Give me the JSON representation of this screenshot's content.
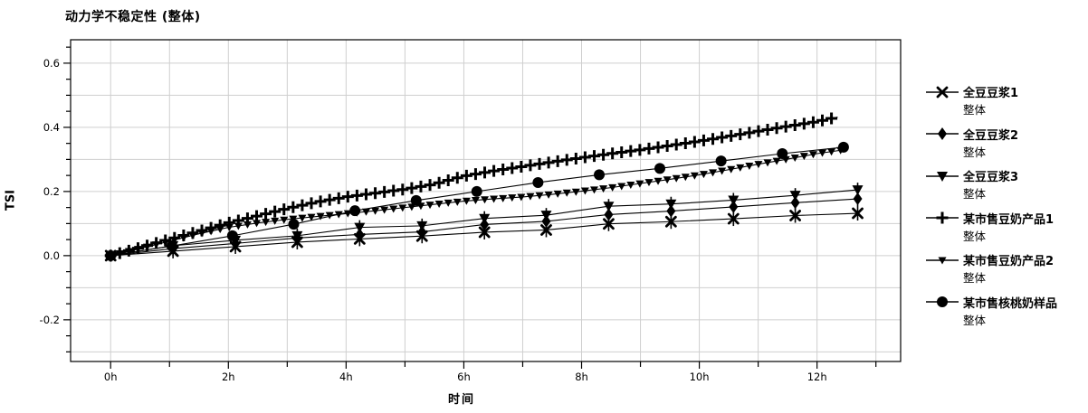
{
  "background_color": "#ffffff",
  "accent_color": "#000000",
  "grid_color": "#cfcfcf",
  "chart_data": {
    "type": "line",
    "title": "动力学不稳定性 (整体)",
    "xlabel": "时间",
    "ylabel": "TSI",
    "x_unit": "h",
    "xlim": [
      -0.68,
      13.42
    ],
    "ylim": [
      -0.33,
      0.673
    ],
    "x_major_ticks": [
      0,
      2,
      4,
      6,
      8,
      10,
      12
    ],
    "x_major_tick_labels": [
      "0h",
      "2h",
      "4h",
      "6h",
      "8h",
      "10h",
      "12h"
    ],
    "x_minor_tick_step": 1,
    "y_major_ticks": [
      0.6,
      0.4,
      0.2,
      0.0,
      -0.2
    ],
    "y_major_tick_labels": [
      "0.6",
      "0.4",
      "0.2",
      "0.0",
      "-0.2"
    ],
    "y_minor_tick_step": 0.05,
    "grid": true,
    "grid_x_step": 1,
    "grid_x_range": [
      0,
      13
    ],
    "grid_y_step": 0.1,
    "grid_y_range": [
      -0.3,
      0.6
    ],
    "legend_position": "right",
    "series": [
      {
        "name": "全豆豆浆1",
        "sub": "整体",
        "marker": "x",
        "marker_size": 10,
        "error_bars": true,
        "t": [
          0,
          1.06,
          2.12,
          3.17,
          4.23,
          5.29,
          6.35,
          7.4,
          8.46,
          9.52,
          10.58,
          11.63,
          12.69
        ],
        "v": [
          0.0,
          0.014,
          0.028,
          0.042,
          0.052,
          0.061,
          0.073,
          0.08,
          0.099,
          0.106,
          0.115,
          0.125,
          0.132
        ]
      },
      {
        "name": "全豆豆浆2",
        "sub": "整体",
        "marker": "diamond",
        "marker_size": 12,
        "error_bars": true,
        "t": [
          0,
          1.06,
          2.12,
          3.17,
          4.23,
          5.29,
          6.35,
          7.4,
          8.46,
          9.52,
          10.58,
          11.63,
          12.69
        ],
        "v": [
          0.0,
          0.022,
          0.038,
          0.055,
          0.066,
          0.074,
          0.097,
          0.107,
          0.128,
          0.139,
          0.152,
          0.165,
          0.177
        ]
      },
      {
        "name": "全豆豆浆3",
        "sub": "整体",
        "marker": "triangle-down",
        "marker_size": 12,
        "error_bars": true,
        "t": [
          0,
          1.06,
          2.12,
          3.17,
          4.23,
          5.29,
          6.35,
          7.4,
          8.46,
          9.52,
          10.58,
          11.63,
          12.69
        ],
        "v": [
          0.0,
          0.031,
          0.048,
          0.062,
          0.088,
          0.093,
          0.116,
          0.126,
          0.154,
          0.161,
          0.173,
          0.188,
          0.205
        ]
      },
      {
        "name": "某市售豆奶产品1",
        "sub": "整体",
        "marker": "plus",
        "marker_size": 11,
        "dense_marker_interval": 0.155,
        "t": [
          0,
          0.5,
          1,
          1.5,
          2,
          2.5,
          3,
          3.5,
          4,
          4.5,
          5,
          5.5,
          6,
          6.5,
          7,
          7.5,
          8,
          8.5,
          9,
          9.5,
          10,
          10.5,
          11,
          11.5,
          12,
          12.35
        ],
        "v": [
          0.0,
          0.025,
          0.051,
          0.076,
          0.102,
          0.124,
          0.147,
          0.167,
          0.183,
          0.195,
          0.207,
          0.223,
          0.248,
          0.264,
          0.278,
          0.292,
          0.305,
          0.318,
          0.33,
          0.343,
          0.357,
          0.372,
          0.388,
          0.403,
          0.418,
          0.432
        ]
      },
      {
        "name": "某市售豆奶产品2",
        "sub": "整体",
        "marker": "triangle-down",
        "marker_size": 9,
        "dense_marker_interval": 0.155,
        "t": [
          0,
          0.5,
          1,
          1.5,
          2,
          2.5,
          3,
          3.5,
          4,
          4.5,
          5,
          5.5,
          6,
          6.5,
          7,
          7.5,
          8,
          8.5,
          9,
          9.5,
          10,
          10.5,
          11,
          11.5,
          12,
          12.5
        ],
        "v": [
          0.0,
          0.022,
          0.045,
          0.068,
          0.088,
          0.102,
          0.113,
          0.122,
          0.131,
          0.14,
          0.15,
          0.16,
          0.17,
          0.177,
          0.183,
          0.191,
          0.201,
          0.212,
          0.225,
          0.238,
          0.252,
          0.268,
          0.285,
          0.301,
          0.318,
          0.331
        ]
      },
      {
        "name": "某市售核桃奶样品",
        "sub": "整体",
        "marker": "circle",
        "marker_size": 12,
        "t": [
          0,
          1.04,
          2.07,
          3.11,
          4.15,
          5.19,
          6.22,
          7.26,
          8.3,
          9.33,
          10.37,
          11.41,
          12.45
        ],
        "v": [
          0.0,
          0.03,
          0.062,
          0.098,
          0.14,
          0.172,
          0.2,
          0.228,
          0.252,
          0.272,
          0.295,
          0.318,
          0.338
        ]
      }
    ]
  }
}
